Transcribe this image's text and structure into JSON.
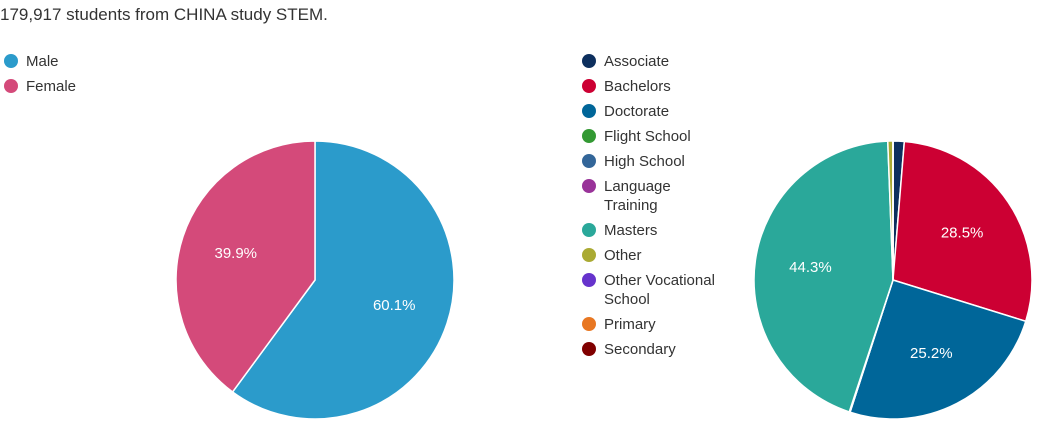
{
  "header": {
    "title": "179,917 students from CHINA study STEM."
  },
  "chart_data": [
    {
      "type": "pie",
      "categories": [
        "Male",
        "Female"
      ],
      "values": [
        60.1,
        39.9
      ],
      "value_labels": [
        "60.1%",
        "39.9%"
      ],
      "colors": [
        "#2b9bcb",
        "#d44a7a"
      ]
    },
    {
      "type": "pie",
      "categories": [
        "Associate",
        "Bachelors",
        "Doctorate",
        "Flight School",
        "High School",
        "Language Training",
        "Masters",
        "Other",
        "Other Vocational School",
        "Primary",
        "Secondary"
      ],
      "values": [
        1.3,
        28.5,
        25.2,
        0,
        0.1,
        0,
        44.3,
        0.6,
        0,
        0,
        0
      ],
      "value_labels": [
        null,
        "28.5%",
        "25.2%",
        null,
        null,
        null,
        "44.3%",
        null,
        null,
        null,
        null
      ],
      "colors": [
        "#0d2f5e",
        "#cc0033",
        "#006699",
        "#339933",
        "#336699",
        "#993399",
        "#2aa89a",
        "#aaaa33",
        "#6633cc",
        "#e87722",
        "#800000"
      ]
    }
  ]
}
